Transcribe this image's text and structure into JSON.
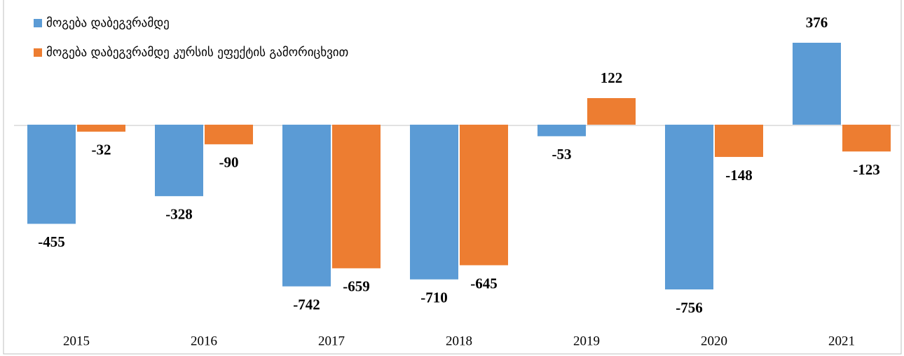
{
  "chart_data": {
    "type": "bar",
    "categories": [
      "2015",
      "2016",
      "2017",
      "2018",
      "2019",
      "2020",
      "2021"
    ],
    "series": [
      {
        "name": "მოგება დაბეგვრამდე",
        "color": "#5b9bd5",
        "values": [
          -455,
          -328,
          -742,
          -710,
          -53,
          -756,
          376
        ]
      },
      {
        "name": "მოგება დაბეგვრამდე კურსის ეფექტის გამორიცხვით",
        "color": "#ed7d31",
        "values": [
          -32,
          -90,
          -659,
          -645,
          122,
          -148,
          -123
        ]
      }
    ],
    "legend": "top-left"
  }
}
